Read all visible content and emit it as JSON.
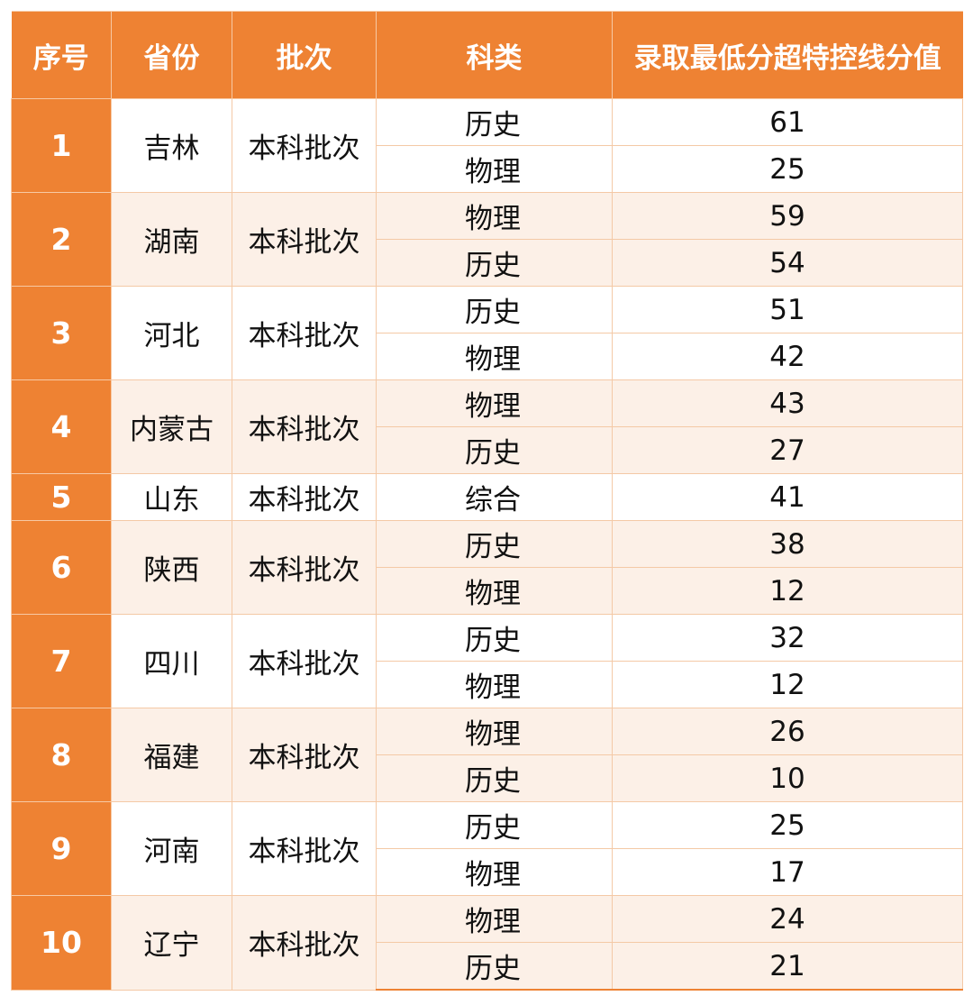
{
  "headers": [
    "序号",
    "省份",
    "批次",
    "科类",
    "录取最低分超特控线分值"
  ],
  "groups": [
    {
      "index": "1",
      "province": "吉林",
      "batch": "本科批次",
      "rows": [
        {
          "subject": "历史",
          "score": "61"
        },
        {
          "subject": "物理",
          "score": "25"
        }
      ]
    },
    {
      "index": "2",
      "province": "湖南",
      "batch": "本科批次",
      "rows": [
        {
          "subject": "物理",
          "score": "59"
        },
        {
          "subject": "历史",
          "score": "54"
        }
      ]
    },
    {
      "index": "3",
      "province": "河北",
      "batch": "本科批次",
      "rows": [
        {
          "subject": "历史",
          "score": "51"
        },
        {
          "subject": "物理",
          "score": "42"
        }
      ]
    },
    {
      "index": "4",
      "province": "内蒙古",
      "batch": "本科批次",
      "rows": [
        {
          "subject": "物理",
          "score": "43"
        },
        {
          "subject": "历史",
          "score": "27"
        }
      ]
    },
    {
      "index": "5",
      "province": "山东",
      "batch": "本科批次",
      "rows": [
        {
          "subject": "综合",
          "score": "41"
        }
      ]
    },
    {
      "index": "6",
      "province": "陕西",
      "batch": "本科批次",
      "rows": [
        {
          "subject": "历史",
          "score": "38"
        },
        {
          "subject": "物理",
          "score": "12"
        }
      ]
    },
    {
      "index": "7",
      "province": "四川",
      "batch": "本科批次",
      "rows": [
        {
          "subject": "历史",
          "score": "32"
        },
        {
          "subject": "物理",
          "score": "12"
        }
      ]
    },
    {
      "index": "8",
      "province": "福建",
      "batch": "本科批次",
      "rows": [
        {
          "subject": "物理",
          "score": "26"
        },
        {
          "subject": "历史",
          "score": "10"
        }
      ]
    },
    {
      "index": "9",
      "province": "河南",
      "batch": "本科批次",
      "rows": [
        {
          "subject": "历史",
          "score": "25"
        },
        {
          "subject": "物理",
          "score": "17"
        }
      ]
    },
    {
      "index": "10",
      "province": "辽宁",
      "batch": "本科批次",
      "rows": [
        {
          "subject": "物理",
          "score": "24"
        },
        {
          "subject": "历史",
          "score": "21"
        }
      ]
    }
  ],
  "colors": {
    "header_bg": "#ee8233",
    "header_text": "#ffffff",
    "stripe_bg": "#fcf0e7",
    "border": "#f4c9a6"
  }
}
